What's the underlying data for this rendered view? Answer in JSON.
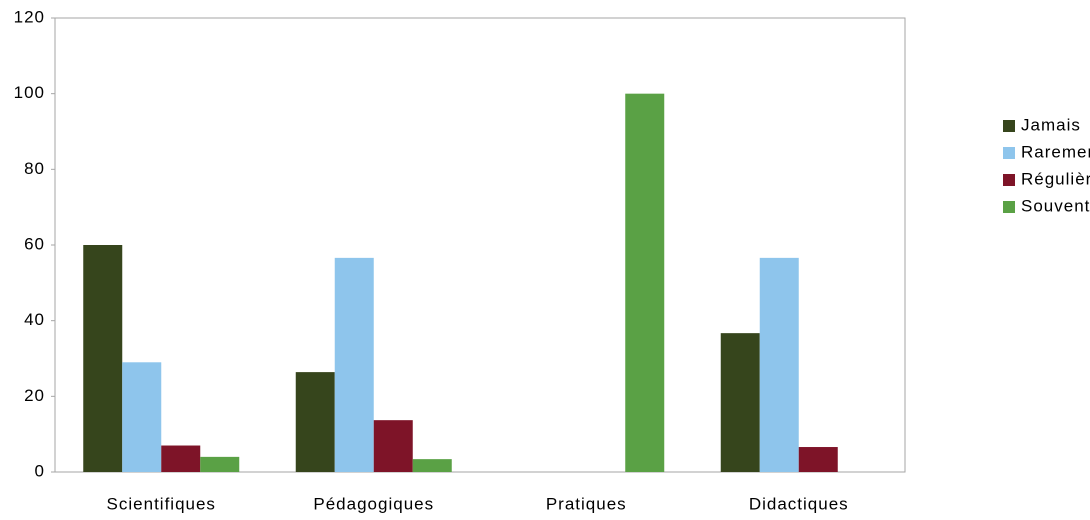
{
  "chart_data": {
    "type": "bar",
    "categories": [
      "Scientifiques",
      "Pédagogiques",
      "Pratiques",
      "Didactiques"
    ],
    "series": [
      {
        "name": "Jamais",
        "color": "#36451c",
        "values": [
          60,
          26.4,
          0,
          36.7
        ]
      },
      {
        "name": "Rarement",
        "color": "#8ec5ec",
        "values": [
          29,
          56.6,
          0,
          56.6
        ]
      },
      {
        "name": "Régulièrement",
        "color": "#7e1428",
        "values": [
          7,
          13.7,
          0,
          6.6
        ]
      },
      {
        "name": "Souvent",
        "color": "#5aa145",
        "values": [
          4,
          3.4,
          100,
          0
        ]
      }
    ],
    "ylim": [
      0,
      120
    ],
    "yticks": [
      0,
      20,
      40,
      60,
      80,
      100,
      120
    ],
    "grid": false,
    "legend": "right"
  }
}
